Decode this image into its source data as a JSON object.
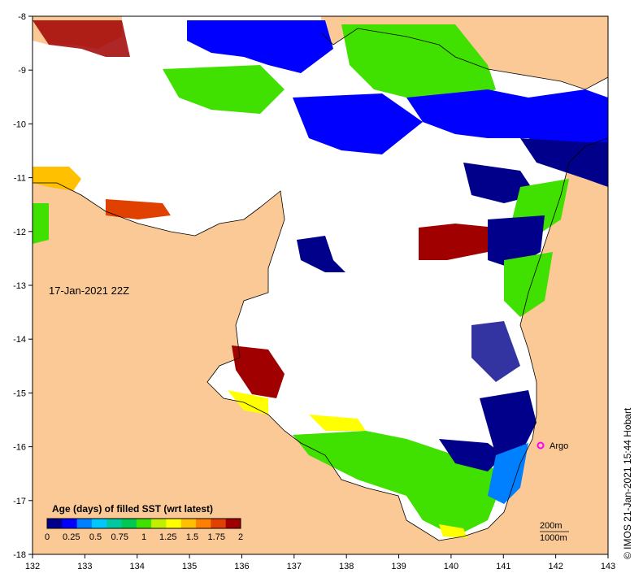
{
  "map": {
    "date_label": "17-Jan-2021 22Z",
    "x_ticks": [
      "132",
      "133",
      "134",
      "135",
      "136",
      "137",
      "138",
      "139",
      "140",
      "141",
      "142",
      "143"
    ],
    "y_ticks": [
      "-8",
      "-9",
      "-10",
      "-11",
      "-12",
      "-13",
      "-14",
      "-15",
      "-16",
      "-17",
      "-18"
    ],
    "colorbar": {
      "title": "Age (days) of filled SST (wrt latest)",
      "labels": [
        "0",
        "0.25",
        "0.5",
        "0.75",
        "1",
        "1.25",
        "1.5",
        "1.75",
        "2"
      ],
      "colors": [
        "#00008b",
        "#0000ff",
        "#0080ff",
        "#00c8ff",
        "#00c8a0",
        "#00c850",
        "#40e000",
        "#c0f000",
        "#ffff00",
        "#ffc000",
        "#ff8000",
        "#e04000",
        "#a00000"
      ]
    },
    "marker": {
      "label": "Argo",
      "color": "#ff00ff"
    },
    "scale": {
      "line1": "200m",
      "line2": "1000m"
    },
    "credit": "© IMOS 21-Jan-2021 15:44 Hobart",
    "land_color": "#fbc996",
    "ocean_color": "#ffffff"
  }
}
